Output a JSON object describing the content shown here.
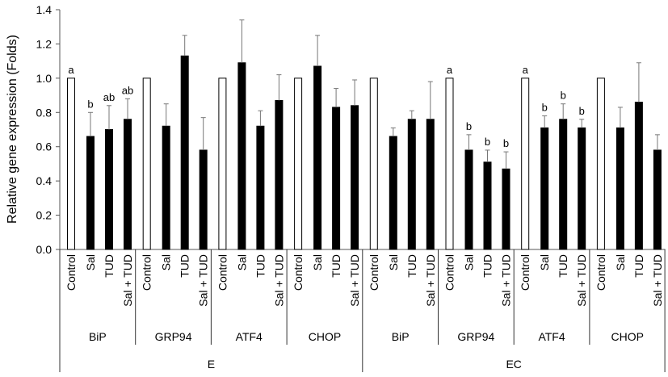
{
  "chart_data": {
    "type": "bar",
    "title": "",
    "ylabel": "Relative gene expression (Folds)",
    "xlabel": "",
    "ylim": [
      0,
      1.4
    ],
    "yticks": [
      "0.0",
      "0.2",
      "0.4",
      "0.6",
      "0.8",
      "1.0",
      "1.2",
      "1.4"
    ],
    "grid": false,
    "treatments": [
      "Control",
      "Sal",
      "TUD",
      "Sal + TUD"
    ],
    "bar_colors": {
      "control": "#ffffff",
      "treatment": "#000000"
    },
    "conditions": [
      {
        "name": "E",
        "genes": [
          {
            "gene": "BiP",
            "values": [
              1.0,
              0.66,
              0.7,
              0.76
            ],
            "error_top": [
              null,
              0.8,
              0.84,
              0.88
            ],
            "letters": [
              "a",
              "b",
              "ab",
              "ab"
            ]
          },
          {
            "gene": "GRP94",
            "values": [
              1.0,
              0.72,
              1.13,
              0.58
            ],
            "error_top": [
              null,
              0.85,
              1.25,
              0.77
            ],
            "letters": [
              "",
              "",
              "",
              ""
            ]
          },
          {
            "gene": "ATF4",
            "values": [
              1.0,
              1.09,
              0.72,
              0.87
            ],
            "error_top": [
              null,
              1.34,
              0.81,
              1.02
            ],
            "letters": [
              "",
              "",
              "",
              ""
            ]
          },
          {
            "gene": "CHOP",
            "values": [
              1.0,
              1.07,
              0.83,
              0.84
            ],
            "error_top": [
              null,
              1.25,
              0.94,
              0.99
            ],
            "letters": [
              "",
              "",
              "",
              ""
            ]
          }
        ]
      },
      {
        "name": "EC",
        "genes": [
          {
            "gene": "BiP",
            "values": [
              1.0,
              0.66,
              0.76,
              0.76
            ],
            "error_top": [
              null,
              0.71,
              0.81,
              0.98
            ],
            "letters": [
              "",
              "",
              "",
              ""
            ]
          },
          {
            "gene": "GRP94",
            "values": [
              1.0,
              0.58,
              0.51,
              0.47
            ],
            "error_top": [
              null,
              0.67,
              0.58,
              0.57
            ],
            "letters": [
              "a",
              "b",
              "b",
              "b"
            ]
          },
          {
            "gene": "ATF4",
            "values": [
              1.0,
              0.71,
              0.76,
              0.71
            ],
            "error_top": [
              null,
              0.78,
              0.85,
              0.76
            ],
            "letters": [
              "a",
              "b",
              "b",
              "b"
            ]
          },
          {
            "gene": "CHOP",
            "values": [
              1.0,
              0.71,
              0.86,
              0.58
            ],
            "error_top": [
              null,
              0.83,
              1.09,
              0.67
            ],
            "letters": [
              "",
              "",
              "",
              ""
            ]
          }
        ]
      }
    ]
  }
}
